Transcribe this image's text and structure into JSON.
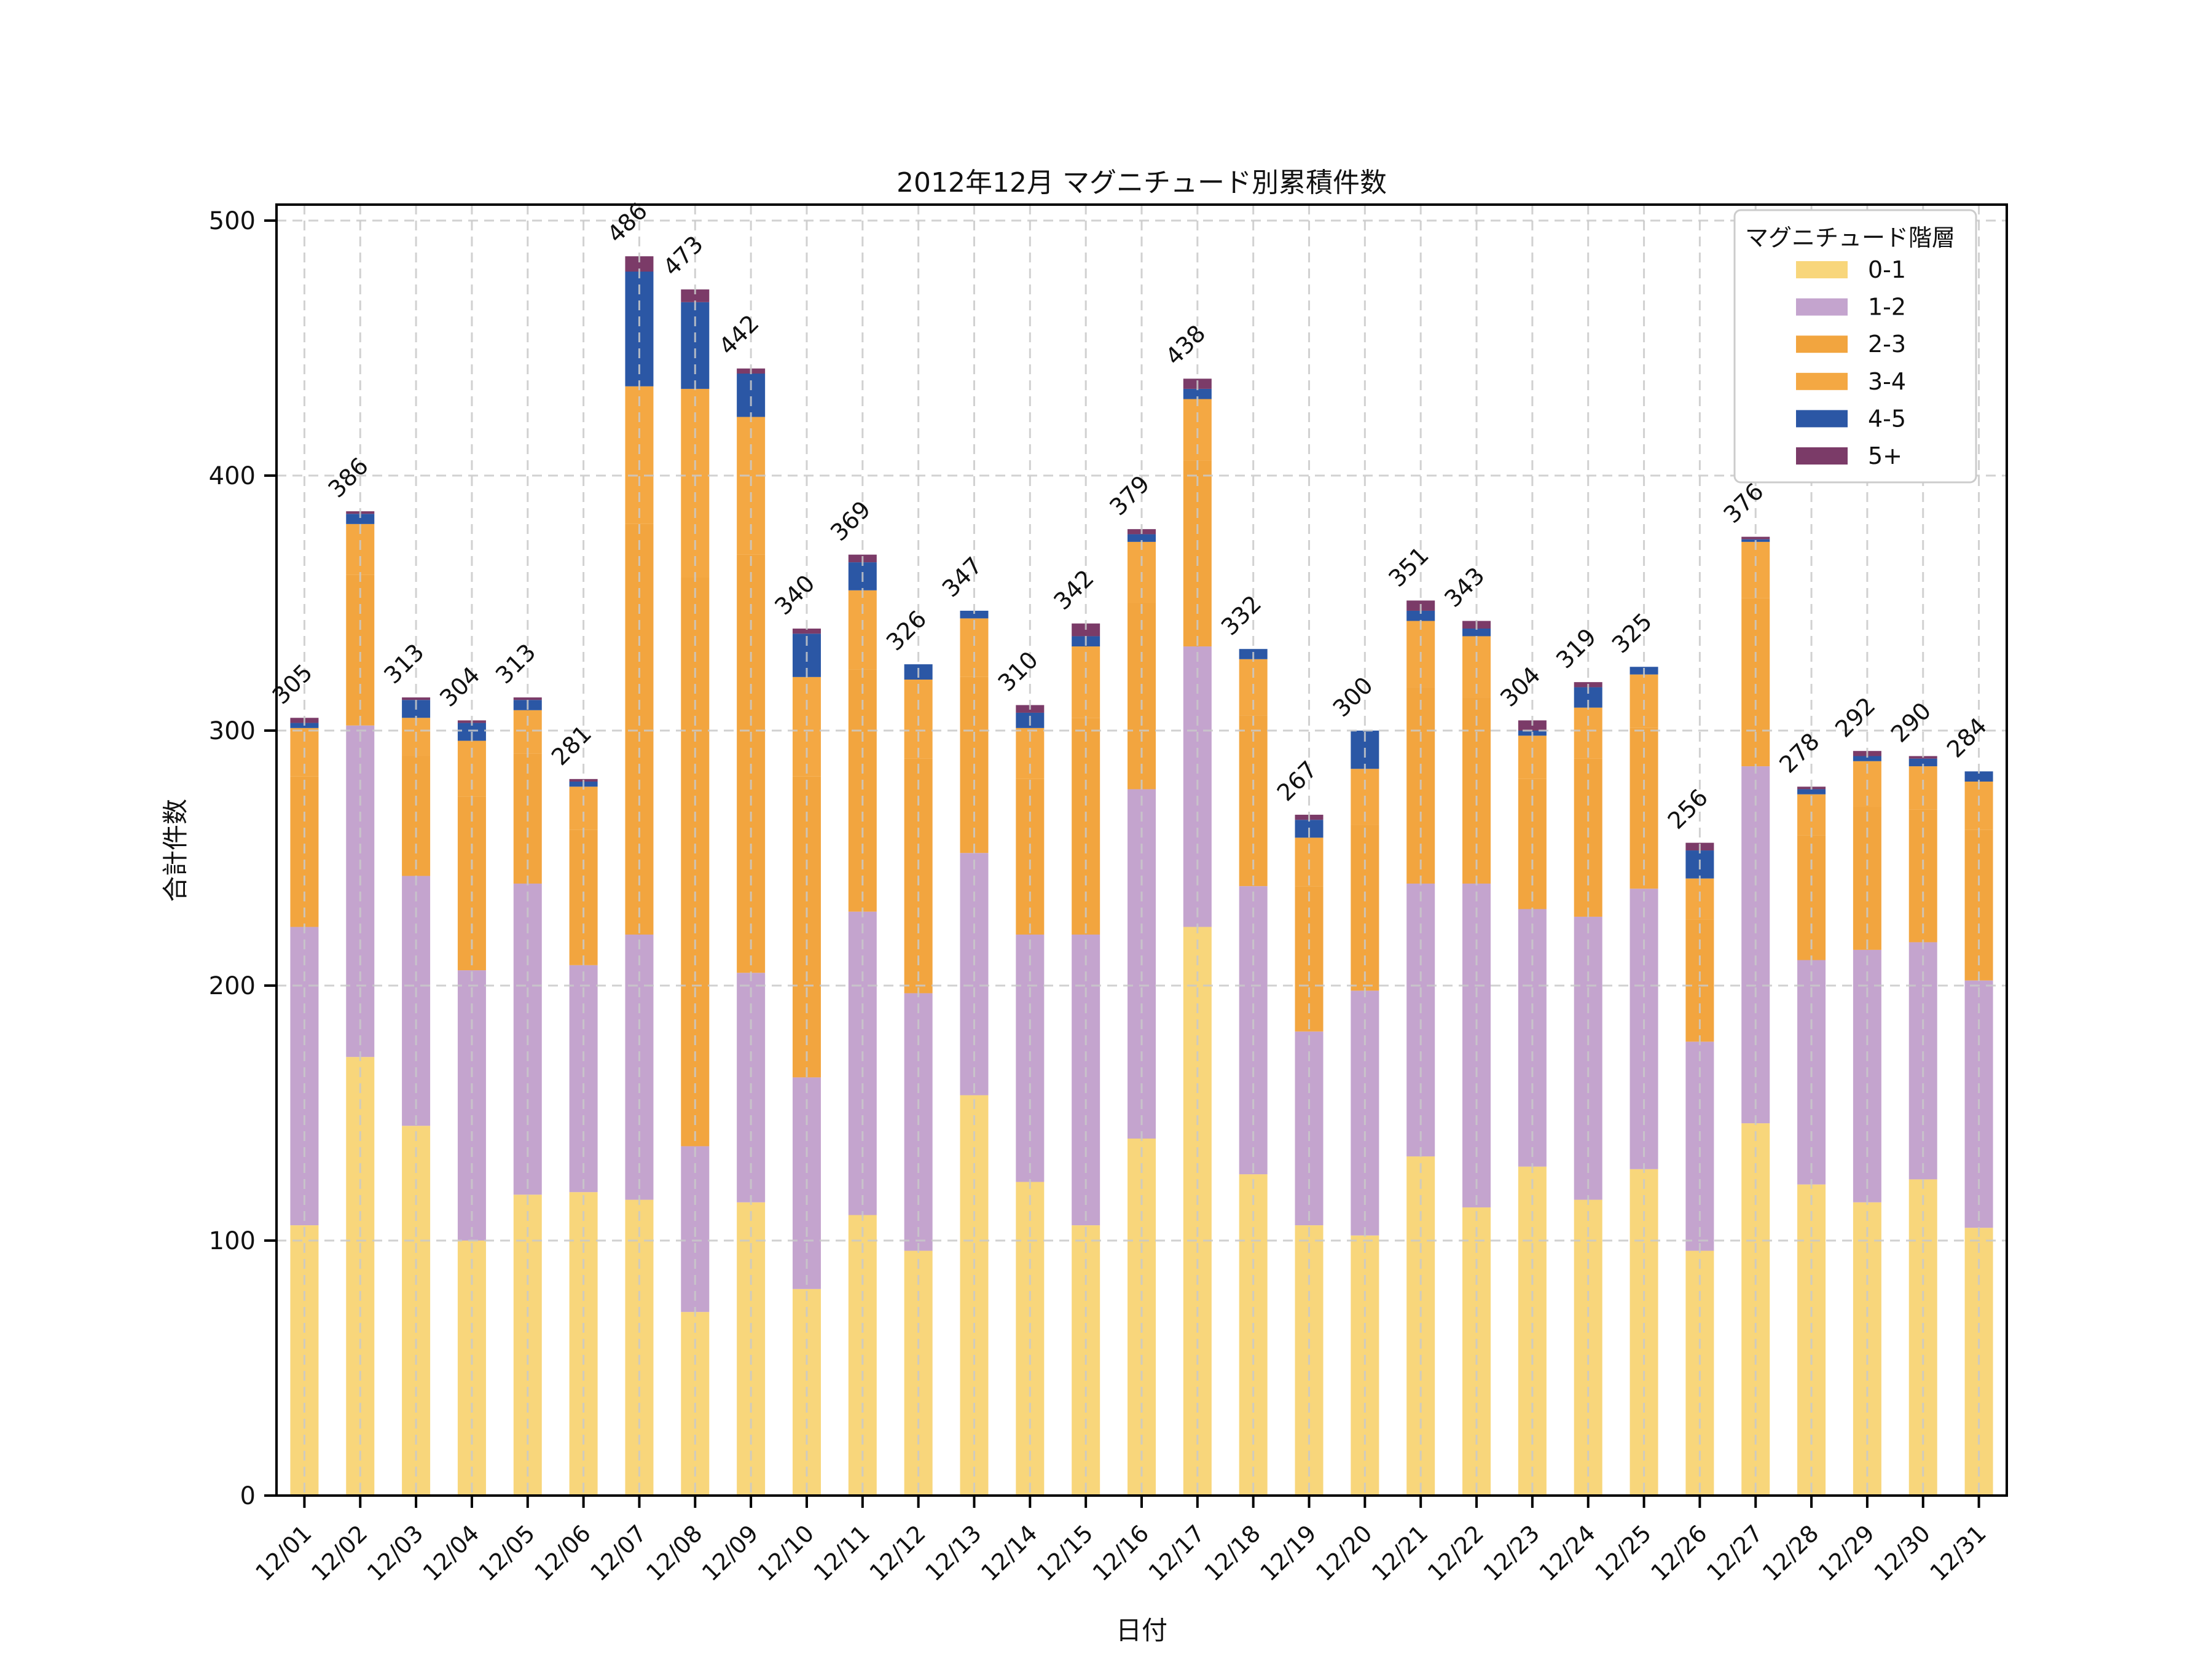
{
  "title": "2012年12月 マグニチュード別累積件数",
  "axes": {
    "x_label": "日付",
    "y_label": "合計件数",
    "y_ticks": [
      0,
      100,
      200,
      300,
      400,
      500
    ]
  },
  "legend": {
    "title": "マグニチュード階層",
    "entries": [
      "0-1",
      "1-2",
      "2-3",
      "3-4",
      "4-5",
      "5+"
    ],
    "position": "upper right"
  },
  "style_colors": {
    "grid": "#c9c9c9",
    "spine": "#000000",
    "legend_border": "#cccccc",
    "background": "#ffffff"
  },
  "chart_data": {
    "type": "bar",
    "stacked": true,
    "grid": true,
    "legend_position": "upper right",
    "title": "2012年12月 マグニチュード別累積件数",
    "xlabel": "日付",
    "ylabel": "合計件数",
    "ylim": [
      0,
      506
    ],
    "categories": [
      "12/01",
      "12/02",
      "12/03",
      "12/04",
      "12/05",
      "12/06",
      "12/07",
      "12/08",
      "12/09",
      "12/10",
      "12/11",
      "12/12",
      "12/13",
      "12/14",
      "12/15",
      "12/16",
      "12/17",
      "12/18",
      "12/19",
      "12/20",
      "12/21",
      "12/22",
      "12/23",
      "12/24",
      "12/25",
      "12/26",
      "12/27",
      "12/28",
      "12/29",
      "12/30",
      "12/31"
    ],
    "series": [
      {
        "name": "0-1",
        "color": "#F8D67B",
        "values": [
          106,
          172,
          145,
          100,
          118,
          119,
          116,
          72,
          115,
          81,
          110,
          96,
          157,
          123,
          106,
          140,
          223,
          126,
          106,
          102,
          133,
          113,
          129,
          116,
          128,
          96,
          146,
          122,
          115,
          124,
          105
        ]
      },
      {
        "name": "1-2",
        "color": "#C4A4CE",
        "values": [
          117,
          130,
          98,
          106,
          122,
          89,
          104,
          65,
          90,
          83,
          119,
          101,
          95,
          97,
          114,
          137,
          110,
          113,
          76,
          96,
          107,
          127,
          101,
          111,
          110,
          82,
          140,
          88,
          99,
          93,
          97
        ]
      },
      {
        "name": "2-3",
        "color": "#F2A53F",
        "values": [
          59,
          59,
          47,
          68,
          51,
          53,
          161,
          223,
          164,
          118,
          95,
          92,
          69,
          61,
          85,
          73,
          73,
          67,
          57,
          65,
          77,
          73,
          51,
          62,
          63,
          48,
          66,
          49,
          56,
          52,
          59
        ]
      },
      {
        "name": "3-4",
        "color": "#F4A843",
        "values": [
          19,
          20,
          15,
          22,
          17,
          17,
          54,
          74,
          54,
          39,
          31,
          31,
          23,
          20,
          28,
          24,
          24,
          22,
          19,
          22,
          26,
          24,
          17,
          20,
          21,
          16,
          22,
          16,
          18,
          17,
          19
        ]
      },
      {
        "name": "4-5",
        "color": "#2B57A5",
        "values": [
          2,
          4,
          7,
          7,
          4,
          2,
          45,
          34,
          17,
          17,
          11,
          6,
          3,
          6,
          4,
          3,
          4,
          4,
          7,
          15,
          4,
          3,
          2,
          8,
          3,
          11,
          1,
          2,
          2,
          3,
          4
        ]
      },
      {
        "name": "5+",
        "color": "#7B3B68",
        "values": [
          2,
          1,
          1,
          1,
          1,
          1,
          6,
          5,
          2,
          2,
          3,
          0,
          0,
          3,
          5,
          2,
          4,
          0,
          2,
          0,
          4,
          3,
          4,
          2,
          0,
          3,
          1,
          1,
          2,
          1,
          0
        ]
      }
    ],
    "totals": [
      305,
      386,
      313,
      304,
      313,
      281,
      486,
      473,
      442,
      340,
      369,
      326,
      347,
      310,
      342,
      379,
      438,
      332,
      267,
      300,
      351,
      343,
      304,
      319,
      325,
      256,
      376,
      278,
      292,
      290,
      284
    ]
  }
}
